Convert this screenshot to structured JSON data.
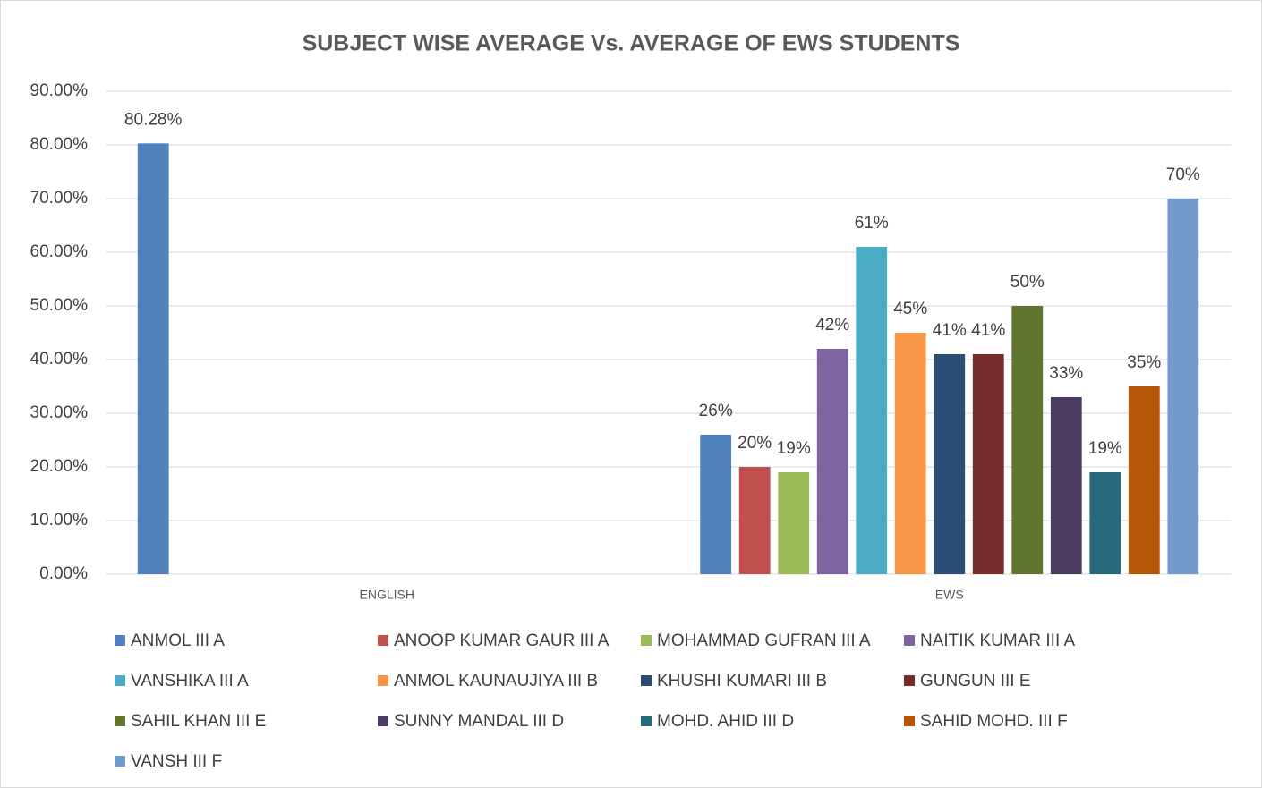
{
  "chart_data": {
    "type": "bar",
    "title": "SUBJECT WISE AVERAGE Vs. AVERAGE OF EWS STUDENTS",
    "categories": [
      "ENGLISH",
      "EWS"
    ],
    "ylim": [
      0,
      90
    ],
    "yticks": [
      {
        "value": 0,
        "label": "0.00%"
      },
      {
        "value": 10,
        "label": "10.00%"
      },
      {
        "value": 20,
        "label": "20.00%"
      },
      {
        "value": 30,
        "label": "30.00%"
      },
      {
        "value": 40,
        "label": "40.00%"
      },
      {
        "value": 50,
        "label": "50.00%"
      },
      {
        "value": 60,
        "label": "60.00%"
      },
      {
        "value": 70,
        "label": "70.00%"
      },
      {
        "value": 80,
        "label": "80.00%"
      },
      {
        "value": 90,
        "label": "90.00%"
      }
    ],
    "grid": true,
    "legend": "bottom",
    "series": [
      {
        "name": "ANMOL III A",
        "color": "#4f81bd",
        "values": [
          80.28,
          26
        ],
        "value_labels": [
          "80.28%",
          "26%"
        ]
      },
      {
        "name": "ANOOP KUMAR GAUR III A",
        "color": "#c0504d",
        "values": [
          null,
          20
        ],
        "value_labels": [
          null,
          "20%"
        ]
      },
      {
        "name": "MOHAMMAD GUFRAN III A",
        "color": "#9bbb59",
        "values": [
          null,
          19
        ],
        "value_labels": [
          null,
          "19%"
        ]
      },
      {
        "name": "NAITIK KUMAR III A",
        "color": "#8064a2",
        "values": [
          null,
          42
        ],
        "value_labels": [
          null,
          "42%"
        ]
      },
      {
        "name": "VANSHIKA III A",
        "color": "#4bacc6",
        "values": [
          null,
          61
        ],
        "value_labels": [
          null,
          "61%"
        ]
      },
      {
        "name": "ANMOL KAUNAUJIYA III B",
        "color": "#f79646",
        "values": [
          null,
          45
        ],
        "value_labels": [
          null,
          "45%"
        ]
      },
      {
        "name": "KHUSHI KUMARI III B",
        "color": "#2c4d75",
        "values": [
          null,
          41
        ],
        "value_labels": [
          null,
          "41%"
        ]
      },
      {
        "name": "GUNGUN III E",
        "color": "#772c2a",
        "values": [
          null,
          41
        ],
        "value_labels": [
          null,
          "41%"
        ]
      },
      {
        "name": "SAHIL KHAN III E",
        "color": "#5f7530",
        "values": [
          null,
          50
        ],
        "value_labels": [
          null,
          "50%"
        ]
      },
      {
        "name": "SUNNY MANDAL III D",
        "color": "#4d3b62",
        "values": [
          null,
          33
        ],
        "value_labels": [
          null,
          "33%"
        ]
      },
      {
        "name": "MOHD. AHID III D",
        "color": "#276a7c",
        "values": [
          null,
          19
        ],
        "value_labels": [
          null,
          "19%"
        ]
      },
      {
        "name": "SAHID MOHD. III F",
        "color": "#b65708",
        "values": [
          null,
          35
        ],
        "value_labels": [
          null,
          "35%"
        ]
      },
      {
        "name": "VANSH III F",
        "color": "#729aca",
        "values": [
          null,
          70
        ],
        "value_labels": [
          null,
          "70%"
        ]
      }
    ]
  }
}
